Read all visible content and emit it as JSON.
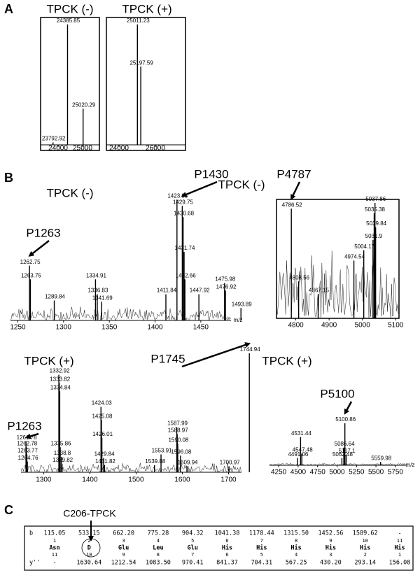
{
  "panel_labels": [
    "A",
    "B",
    "C"
  ],
  "chart_data": [
    {
      "type": "spectrum",
      "title": "TPCK (-)",
      "xlim": [
        23286,
        25686
      ],
      "ylim": [
        0,
        100
      ],
      "xticks": [
        24000,
        25000
      ],
      "peaks": {
        "x": [
          23792.92,
          24385.85,
          25020.29
        ],
        "values": [
          2,
          100,
          30
        ]
      }
    },
    {
      "type": "spectrum",
      "title": "TPCK (+)",
      "xlim": [
        23308,
        27654
      ],
      "ylim": [
        0,
        100
      ],
      "xticks": [
        24000,
        26000
      ],
      "peaks": {
        "x": [
          25011.23,
          25197.59
        ],
        "values": [
          100,
          65
        ]
      }
    },
    {
      "type": "spectrum",
      "title": "TPCK (-)",
      "x_label": "m/z",
      "xlim": [
        1242,
        1483
      ],
      "ylim": [
        0,
        100
      ],
      "xticks": [
        1250,
        1300,
        1350,
        1400,
        1450
      ],
      "peaks": {
        "x": [
          1262.75,
          1263.75,
          1289.84,
          1334.91,
          1336.83,
          1341.69,
          1411.84,
          1423.95,
          1429.75,
          1430.68,
          1431.74,
          1432.66,
          1447.92,
          1475.98,
          1476.92,
          1493.89
        ],
        "values": [
          44,
          33,
          16,
          33,
          21,
          15,
          21,
          97,
          92,
          83,
          55,
          33,
          21,
          30,
          24,
          10
        ]
      },
      "annotations": [
        {
          "text": "P1263",
          "x": 1262.75
        },
        {
          "text": "P1430",
          "x": 1429.75
        }
      ]
    },
    {
      "type": "spectrum",
      "title": "TPCK (-)",
      "xlim": [
        4742,
        5110
      ],
      "ylim": [
        0,
        100
      ],
      "xticks": [
        4800,
        4900,
        5000,
        5100
      ],
      "peaks": {
        "x": [
          4786.52,
          4808.56,
          4867.15,
          4974.54,
          5004.17,
          5031.9,
          5035.38,
          5037.86,
          5039.84
        ],
        "values": [
          95,
          32,
          21,
          50,
          59,
          68,
          91,
          100,
          79
        ]
      },
      "annotations": [
        {
          "text": "P4787",
          "x": 4786.52
        }
      ]
    },
    {
      "type": "spectrum",
      "title": "TPCK (+)",
      "xlim": [
        1251,
        1728
      ],
      "ylim": [
        0,
        100
      ],
      "xticks": [
        1300,
        1400,
        1500,
        1600,
        1700
      ],
      "peaks": {
        "x": [
          1261.78,
          1262.78,
          1263.77,
          1264.76,
          1332.92,
          1333.82,
          1334.84,
          1335.86,
          1338.8,
          1339.82,
          1424.03,
          1425.08,
          1426.01,
          1429.84,
          1431.82,
          1539.88,
          1553.91,
          1587.99,
          1588.97,
          1590.08,
          1596.08,
          1609.94,
          1700.97,
          1744.94
        ],
        "values": [
          26,
          21,
          15,
          9,
          82,
          75,
          68,
          21,
          13,
          7,
          55,
          44,
          29,
          12,
          6,
          6,
          15,
          38,
          32,
          24,
          14,
          5,
          5,
          100
        ]
      },
      "annotations": [
        {
          "text": "P1263",
          "x": 1262.78
        },
        {
          "text": "P1745",
          "x": 1744.94
        }
      ]
    },
    {
      "type": "spectrum",
      "title": "TPCK (+)",
      "x_label": "m/z",
      "xlim": [
        4132,
        5886
      ],
      "ylim": [
        0,
        100
      ],
      "xticks": [
        4250,
        4500,
        4750,
        5000,
        5250,
        5500,
        5750
      ],
      "peaks": {
        "x": [
          4491.06,
          4531.44,
          4547.48,
          5062.48,
          5086.64,
          5100.86,
          5117.1,
          5559.98
        ],
        "values": [
          17,
          67,
          28,
          17,
          42,
          100,
          25,
          8
        ]
      },
      "annotations": [
        {
          "text": "P5100",
          "x": 5100.86
        }
      ]
    }
  ],
  "fragment_table": {
    "annotation": "C206-TPCK",
    "b_ions": {
      "label": "b",
      "values": [
        "115.05",
        "533.15",
        "662.20",
        "775.28",
        "904.32",
        "1041.38",
        "1178.44",
        "1315.50",
        "1452.56",
        "1589.62",
        "-"
      ]
    },
    "positions": [
      1,
      2,
      3,
      4,
      5,
      6,
      7,
      8,
      9,
      10,
      11
    ],
    "residues": [
      "Asn",
      "D",
      "Glu",
      "Leu",
      "Glu",
      "His",
      "His",
      "His",
      "His",
      "His",
      "His"
    ],
    "reverse_positions": [
      11,
      10,
      9,
      8,
      7,
      6,
      5,
      4,
      3,
      2,
      1
    ],
    "y_ions": {
      "label": "y''",
      "values": [
        "-",
        "1630.64",
        "1212.54",
        "1083.50",
        "970.41",
        "841.37",
        "704.31",
        "567.25",
        "430.20",
        "293.14",
        "156.08"
      ]
    }
  }
}
